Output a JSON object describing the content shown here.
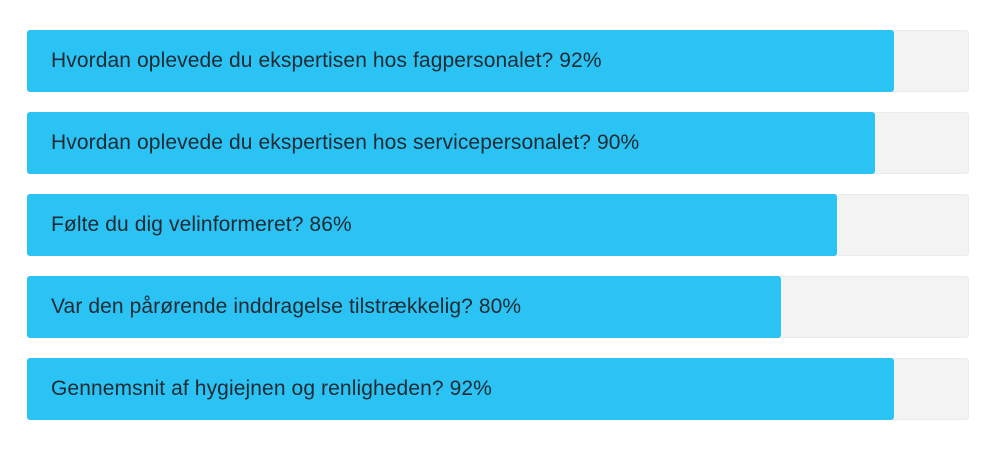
{
  "chart_data": {
    "type": "bar",
    "orientation": "horizontal",
    "accent_color": "#2bc3f4",
    "track_color": "#f3f3f3",
    "ylim": [
      0,
      100
    ],
    "bars": [
      {
        "label": "Hvordan oplevede du ekspertisen hos fagpersonalet? 92%",
        "value": 92
      },
      {
        "label": "Hvordan oplevede du ekspertisen hos servicepersonalet? 90%",
        "value": 90
      },
      {
        "label": "Følte du dig velinformeret? 86%",
        "value": 86
      },
      {
        "label": "Var den pårørende inddragelse tilstrækkelig? 80%",
        "value": 80
      },
      {
        "label": "Gennemsnit af hygiejnen og renligheden? 92%",
        "value": 92
      }
    ]
  }
}
